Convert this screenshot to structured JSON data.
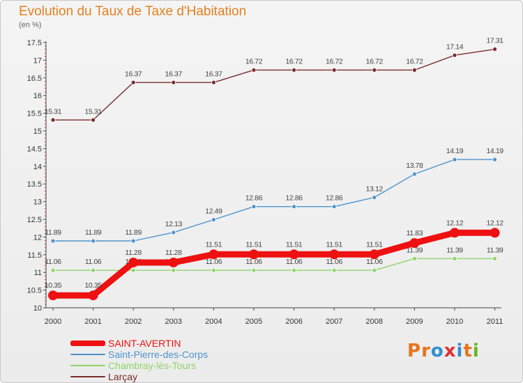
{
  "title": "Evolution du Taux de Taxe d'Habitation",
  "subtitle": "(en %)",
  "logo": {
    "text": "Proxiti",
    "letter_colors": [
      "#e8731c",
      "#e8731c",
      "#2f8fd0",
      "#e03030",
      "#2f8fd0",
      "#e8731c",
      "#63b829"
    ]
  },
  "chart_data": {
    "type": "line",
    "title": "Evolution du Taux de Taxe d'Habitation",
    "ylabel": "(en %)",
    "x": [
      "2000",
      "2001",
      "2002",
      "2003",
      "2004",
      "2005",
      "2006",
      "2007",
      "2008",
      "2009",
      "2010",
      "2011"
    ],
    "ylim": [
      10,
      17.5
    ],
    "yticks": [
      "10",
      "10.5",
      "11",
      "11.5",
      "12",
      "12.5",
      "13",
      "13.5",
      "14",
      "14.5",
      "15",
      "15.5",
      "16",
      "16.5",
      "17",
      "17.5"
    ],
    "grid": false,
    "legend": "bottom-left",
    "series": [
      {
        "name": "Larçay",
        "color": "#7b2b2b",
        "emphasis": false,
        "values": [
          15.31,
          15.31,
          16.37,
          16.37,
          16.37,
          16.72,
          16.72,
          16.72,
          16.72,
          16.72,
          17.14,
          17.31
        ],
        "labels": [
          "15.31",
          "15.31",
          "16.37",
          "16.37",
          "16.37",
          "16.72",
          "16.72",
          "16.72",
          "16.72",
          "16.72",
          "17.14",
          "17.31"
        ]
      },
      {
        "name": "Saint-Pierre-des-Corps",
        "color": "#4f93cc",
        "emphasis": false,
        "values": [
          11.89,
          11.89,
          11.89,
          12.13,
          12.49,
          12.86,
          12.86,
          12.86,
          13.12,
          13.78,
          14.19,
          14.19
        ],
        "labels": [
          "11.89",
          "11.89",
          "11.89",
          "12.13",
          "12.49",
          "12.86",
          "12.86",
          "12.86",
          "13.12",
          "13.78",
          "14.19",
          "14.19"
        ]
      },
      {
        "name": "Chambray-lès-Tours",
        "color": "#8fd46a",
        "emphasis": false,
        "values": [
          11.06,
          11.06,
          11.06,
          11.06,
          11.06,
          11.06,
          11.06,
          11.06,
          11.06,
          11.39,
          11.39,
          11.39
        ],
        "labels": [
          "11.06",
          "11.06",
          "11.06",
          "11.06",
          "11.06",
          "11.06",
          "11.06",
          "11.06",
          "11.06",
          "11.39",
          "11.39",
          "11.39"
        ]
      },
      {
        "name": "SAINT-AVERTIN",
        "color": "#ee1111",
        "emphasis": true,
        "values": [
          10.35,
          10.35,
          11.28,
          11.28,
          11.51,
          11.51,
          11.51,
          11.51,
          11.51,
          11.83,
          12.12,
          12.12
        ],
        "labels": [
          "10.35",
          "10.35",
          "11.28",
          "11.28",
          "11.51",
          "11.51",
          "11.51",
          "11.51",
          "11.51",
          "11.83",
          "12.12",
          "12.12"
        ]
      }
    ],
    "legend_entries": [
      {
        "name": "SAINT-AVERTIN",
        "color": "#ee1111",
        "emphasis": true
      },
      {
        "name": "Saint-Pierre-des-Corps",
        "color": "#4f93cc",
        "emphasis": false
      },
      {
        "name": "Chambray-lès-Tours",
        "color": "#8fd46a",
        "emphasis": false
      },
      {
        "name": "Larçay",
        "color": "#7b2b2b",
        "emphasis": false
      }
    ]
  }
}
